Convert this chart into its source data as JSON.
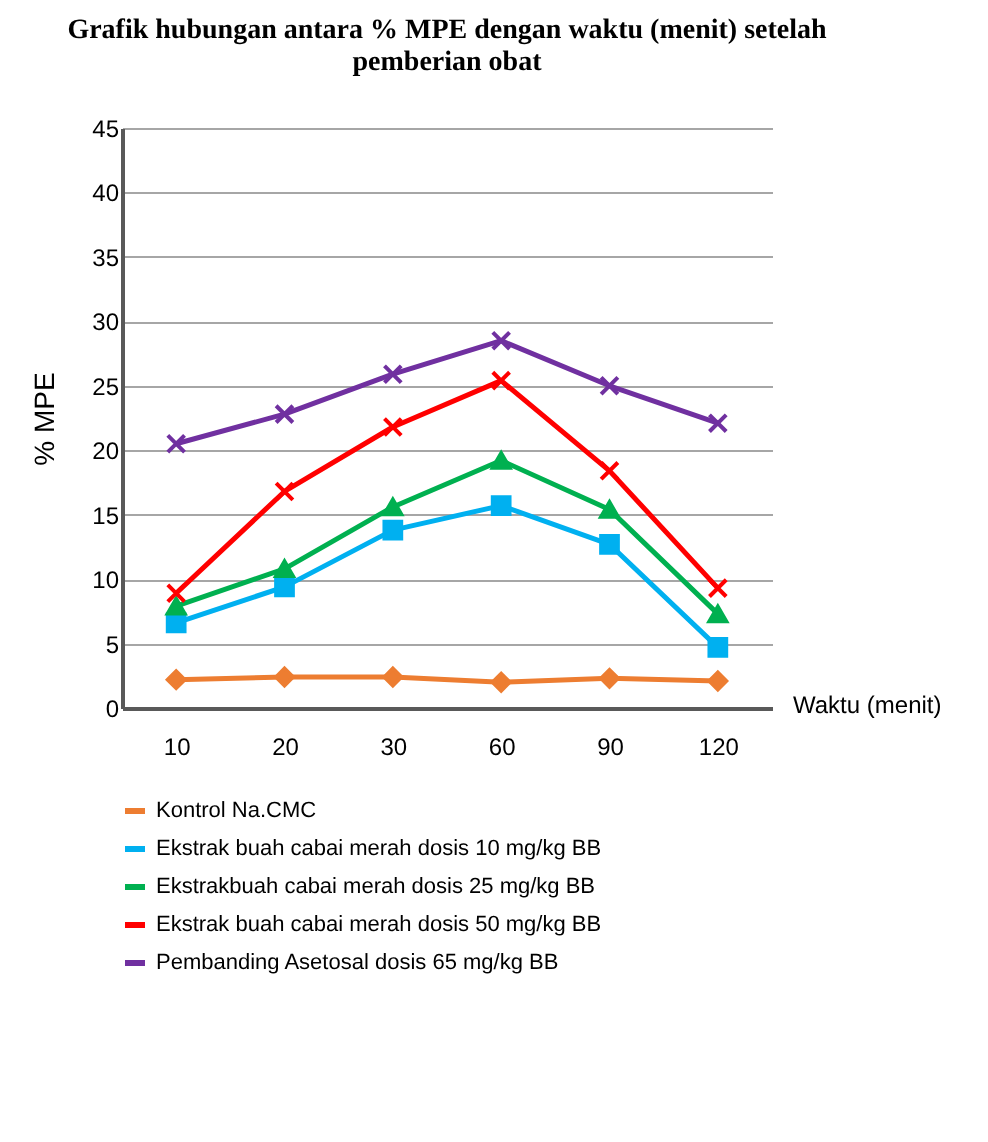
{
  "chart_data": {
    "type": "line",
    "title": "Grafik hubungan antara % MPE dengan waktu (menit) setelah pemberian obat",
    "xlabel": "Waktu (menit)",
    "ylabel": "% MPE",
    "categories": [
      "10",
      "20",
      "30",
      "60",
      "90",
      "120"
    ],
    "ylim": [
      0,
      45
    ],
    "yticks": [
      0,
      5,
      10,
      15,
      20,
      25,
      30,
      35,
      40,
      45
    ],
    "grid": "y",
    "legend": "bottom",
    "series": [
      {
        "name": "Kontrol Na.CMC",
        "color": "#ed7d31",
        "marker": "diamond",
        "values": [
          2.2,
          2.4,
          2.4,
          2.0,
          2.3,
          2.1
        ]
      },
      {
        "name": "Ekstrak buah cabai merah dosis 10 mg/kg BB",
        "color": "#00b0f0",
        "marker": "square",
        "values": [
          6.6,
          9.4,
          13.8,
          15.7,
          12.7,
          4.7
        ]
      },
      {
        "name": "Ekstrakbuah cabai merah dosis 25 mg/kg BB",
        "color": "#00b050",
        "marker": "triangle",
        "values": [
          7.9,
          10.8,
          15.6,
          19.2,
          15.4,
          7.3
        ]
      },
      {
        "name": "Ekstrak buah cabai merah dosis 50 mg/kg BB",
        "color": "#ff0000",
        "marker": "cross",
        "values": [
          8.9,
          16.8,
          21.8,
          25.4,
          18.4,
          9.3
        ]
      },
      {
        "name": "Pembanding Asetosal dosis 65 mg/kg BB",
        "color": "#7030a0",
        "marker": "cross",
        "values": [
          20.5,
          22.8,
          25.9,
          28.5,
          25.0,
          22.1
        ]
      }
    ]
  }
}
